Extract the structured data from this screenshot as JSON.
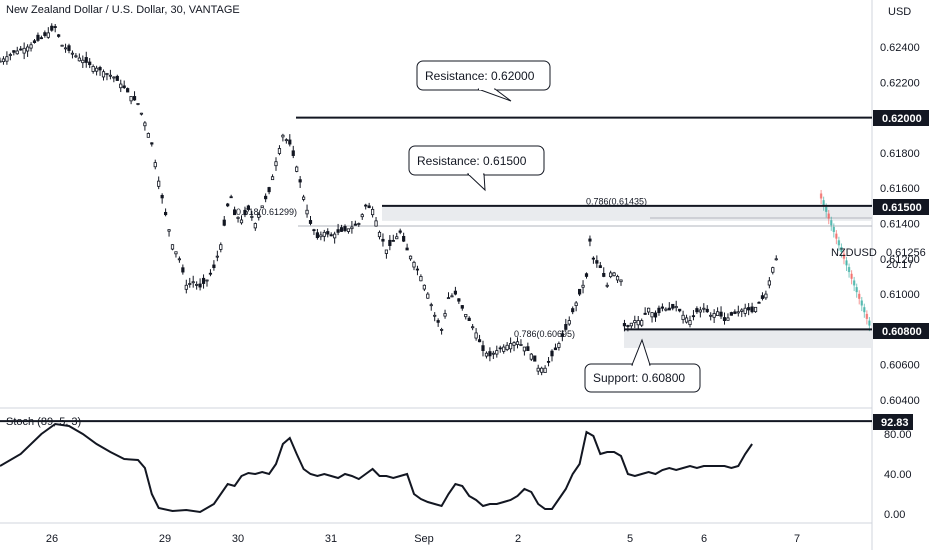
{
  "header": {
    "title": "New Zealand Dollar / U.S. Dollar, 30, VANTAGE"
  },
  "price_axis": {
    "currency": "USD"
  },
  "chart_data": [
    {
      "type": "candlestick",
      "title": "New Zealand Dollar / U.S. Dollar, 30, VANTAGE",
      "symbol": "NZDUSD",
      "last_price": "0.61256",
      "countdown": "20:17",
      "ylabel": "USD",
      "ylim": [
        0.6031,
        0.6262
      ],
      "y_ticks": [
        "0.62400",
        "0.62200",
        "0.62000",
        "0.61800",
        "0.61600",
        "0.61400",
        "0.61200",
        "0.61000",
        "0.60800",
        "0.60600",
        "0.60400"
      ],
      "x_ticks": [
        "26",
        "29",
        "30",
        "31",
        "Sep",
        "2",
        "5",
        "6",
        "7"
      ],
      "close_path": [
        [
          0,
          0.6232
        ],
        [
          2,
          0.6237
        ],
        [
          4,
          0.624
        ],
        [
          6,
          0.6245
        ],
        [
          8,
          0.6251
        ],
        [
          9,
          0.6241
        ],
        [
          11,
          0.6235
        ],
        [
          13,
          0.623
        ],
        [
          15,
          0.6226
        ],
        [
          16.5,
          0.6223
        ],
        [
          18,
          0.6217
        ],
        [
          19,
          0.6212
        ],
        [
          20,
          0.6208
        ],
        [
          21,
          0.6197
        ],
        [
          22,
          0.6185
        ],
        [
          23,
          0.6164
        ],
        [
          24,
          0.6145
        ],
        [
          25,
          0.6128
        ],
        [
          26,
          0.612
        ],
        [
          27,
          0.6105
        ],
        [
          28,
          0.6107
        ],
        [
          29,
          0.6104
        ],
        [
          30,
          0.6108
        ],
        [
          31,
          0.6115
        ],
        [
          32,
          0.6128
        ],
        [
          33,
          0.615
        ],
        [
          33.5,
          0.6155
        ],
        [
          34,
          0.6145
        ],
        [
          35,
          0.6142
        ],
        [
          36,
          0.6148
        ],
        [
          37,
          0.614
        ],
        [
          38,
          0.615
        ],
        [
          39,
          0.6158
        ],
        [
          40,
          0.6175
        ],
        [
          41,
          0.619
        ],
        [
          42,
          0.6185
        ],
        [
          43,
          0.6172
        ],
        [
          44,
          0.6155
        ],
        [
          45,
          0.614
        ],
        [
          46,
          0.6132
        ],
        [
          47,
          0.6135
        ],
        [
          48,
          0.6133
        ],
        [
          49,
          0.6135
        ],
        [
          50,
          0.6136
        ],
        [
          51,
          0.6138
        ],
        [
          52,
          0.614
        ],
        [
          53,
          0.615
        ],
        [
          54,
          0.6148
        ],
        [
          55,
          0.6135
        ],
        [
          56,
          0.6125
        ],
        [
          57,
          0.613
        ],
        [
          58,
          0.6135
        ],
        [
          59,
          0.6125
        ],
        [
          60,
          0.6118
        ],
        [
          61,
          0.611
        ],
        [
          62,
          0.61
        ],
        [
          63,
          0.6088
        ],
        [
          64,
          0.608
        ],
        [
          65,
          0.6098
        ],
        [
          66,
          0.61
        ],
        [
          67,
          0.6092
        ],
        [
          68,
          0.6085
        ],
        [
          69,
          0.6078
        ],
        [
          70,
          0.6068
        ],
        [
          71,
          0.6065
        ],
        [
          72,
          0.6068
        ],
        [
          73,
          0.607
        ],
        [
          74,
          0.6072
        ],
        [
          75,
          0.6073
        ],
        [
          76,
          0.607
        ],
        [
          77,
          0.6066
        ],
        [
          78,
          0.6058
        ],
        [
          79,
          0.6058
        ],
        [
          80,
          0.6065
        ],
        [
          81,
          0.6072
        ],
        [
          82,
          0.608
        ],
        [
          83,
          0.609
        ],
        [
          84,
          0.61
        ],
        [
          85,
          0.611
        ],
        [
          85.5,
          0.613
        ],
        [
          86,
          0.612
        ],
        [
          87,
          0.6115
        ],
        [
          88,
          0.6105
        ],
        [
          88.5,
          0.6112
        ],
        [
          89,
          0.6112
        ],
        [
          90,
          0.6108
        ],
        [
          90.5,
          0.6109
        ]
      ],
      "close_path_2": [
        [
          90.5,
          0.6082
        ],
        [
          91,
          0.6082
        ],
        [
          92,
          0.6085
        ],
        [
          93,
          0.6085
        ],
        [
          94,
          0.6092
        ],
        [
          95,
          0.6087
        ],
        [
          96,
          0.6092
        ],
        [
          97,
          0.6091
        ],
        [
          98,
          0.6093
        ],
        [
          99,
          0.6088
        ],
        [
          100,
          0.6085
        ],
        [
          101,
          0.609
        ],
        [
          102,
          0.6092
        ],
        [
          103,
          0.6088
        ],
        [
          104,
          0.609
        ],
        [
          105,
          0.6085
        ],
        [
          106,
          0.6088
        ],
        [
          107,
          0.609
        ],
        [
          108,
          0.6092
        ],
        [
          109,
          0.609
        ],
        [
          110,
          0.6095
        ],
        [
          111,
          0.61
        ],
        [
          112,
          0.6115
        ],
        [
          113,
          0.6125
        ]
      ],
      "projection": {
        "colors_up": "#26a69a",
        "colors_down": "#ef5350",
        "x_start": 119,
        "x_end": 126,
        "y_start": 0.6155,
        "y_end": 0.6083
      },
      "levels": [
        {
          "label": "0.62000",
          "value": 0.62
        },
        {
          "label": "0.61500",
          "value": 0.615
        },
        {
          "label": "0.60800",
          "value": 0.608
        }
      ],
      "zones": [
        {
          "from": 0.61415,
          "to": 0.615
        },
        {
          "from": 0.60695,
          "to": 0.608
        }
      ],
      "fib_labels": [
        {
          "text": "0.618(0.61299)",
          "value": 0.6143
        },
        {
          "text": "0.786(0.61435)",
          "value": 0.6149
        },
        {
          "text": "0.786(0.60695)",
          "value": 0.6074
        }
      ],
      "annotations": [
        {
          "name": "resistance-callout-62000",
          "text": "Resistance: 0.62000"
        },
        {
          "name": "resistance-callout-61500",
          "text": "Resistance: 0.61500"
        },
        {
          "name": "support-callout-60800",
          "text": "Support: 0.60800"
        }
      ]
    },
    {
      "type": "line",
      "title": "Stoch (89, 5, 3)",
      "ylim": [
        -5,
        100
      ],
      "y_ticks": [
        "80.00",
        "40.00",
        "0.00"
      ],
      "level_label": "92.83",
      "level_value": 92.83,
      "values": [
        [
          0,
          48
        ],
        [
          3,
          60
        ],
        [
          6,
          80
        ],
        [
          8,
          90
        ],
        [
          10,
          88
        ],
        [
          12,
          80
        ],
        [
          14,
          70
        ],
        [
          16,
          62
        ],
        [
          18,
          55
        ],
        [
          20,
          54
        ],
        [
          21,
          46
        ],
        [
          22,
          20
        ],
        [
          23,
          6
        ],
        [
          25,
          3
        ],
        [
          27,
          4
        ],
        [
          29,
          2
        ],
        [
          31,
          10
        ],
        [
          33,
          30
        ],
        [
          34,
          28
        ],
        [
          35,
          38
        ],
        [
          36,
          41
        ],
        [
          37,
          40
        ],
        [
          38,
          42
        ],
        [
          39,
          40
        ],
        [
          40,
          50
        ],
        [
          41,
          70
        ],
        [
          42,
          76
        ],
        [
          43,
          60
        ],
        [
          44,
          45
        ],
        [
          45,
          40
        ],
        [
          46,
          38
        ],
        [
          47,
          40
        ],
        [
          48,
          38
        ],
        [
          49,
          36
        ],
        [
          50,
          40
        ],
        [
          51,
          38
        ],
        [
          52,
          35
        ],
        [
          53,
          40
        ],
        [
          54,
          45
        ],
        [
          55,
          38
        ],
        [
          56,
          38
        ],
        [
          57,
          36
        ],
        [
          58,
          38
        ],
        [
          59,
          40
        ],
        [
          60,
          20
        ],
        [
          61,
          15
        ],
        [
          62,
          12
        ],
        [
          63,
          10
        ],
        [
          64,
          8
        ],
        [
          65,
          20
        ],
        [
          66,
          30
        ],
        [
          67,
          28
        ],
        [
          68,
          18
        ],
        [
          69,
          14
        ],
        [
          70,
          8
        ],
        [
          71,
          10
        ],
        [
          72,
          10
        ],
        [
          73,
          12
        ],
        [
          74,
          14
        ],
        [
          75,
          18
        ],
        [
          76,
          25
        ],
        [
          77,
          22
        ],
        [
          78,
          10
        ],
        [
          79,
          5
        ],
        [
          80,
          5
        ],
        [
          81,
          15
        ],
        [
          82,
          25
        ],
        [
          83,
          40
        ],
        [
          84,
          50
        ],
        [
          85,
          82
        ],
        [
          86,
          78
        ],
        [
          87,
          60
        ],
        [
          88,
          62
        ],
        [
          89,
          62
        ],
        [
          90,
          58
        ],
        [
          91,
          40
        ],
        [
          92,
          38
        ],
        [
          93,
          40
        ],
        [
          94,
          42
        ],
        [
          95,
          40
        ],
        [
          96,
          44
        ],
        [
          97,
          46
        ],
        [
          98,
          44
        ],
        [
          99,
          46
        ],
        [
          100,
          48
        ],
        [
          101,
          46
        ],
        [
          102,
          48
        ],
        [
          103,
          48
        ],
        [
          104,
          48
        ],
        [
          105,
          48
        ],
        [
          106,
          46
        ],
        [
          107,
          48
        ],
        [
          108,
          60
        ],
        [
          109,
          70
        ]
      ]
    }
  ]
}
